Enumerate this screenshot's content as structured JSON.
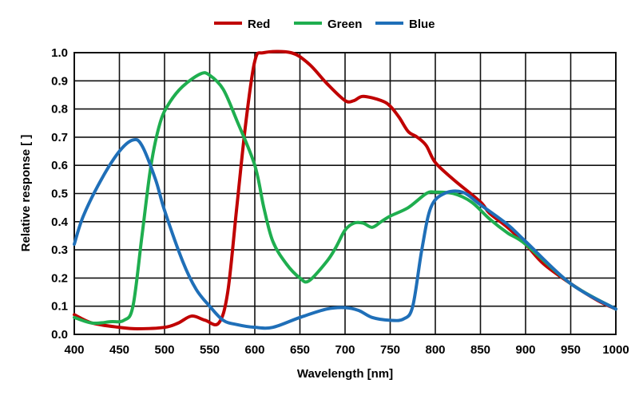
{
  "chart_data": {
    "type": "line",
    "title": "",
    "xlabel": "Wavelength [nm]",
    "ylabel": "Relative response [ ]",
    "xlim": [
      400,
      1000
    ],
    "ylim": [
      0,
      1.0
    ],
    "xticks": [
      400,
      450,
      500,
      550,
      600,
      650,
      700,
      750,
      800,
      850,
      900,
      950,
      1000
    ],
    "yticks": [
      "0.0",
      "0.1",
      "0.2",
      "0.3",
      "0.4",
      "0.5",
      "0.6",
      "0.7",
      "0.8",
      "0.9",
      "1.0"
    ],
    "grid": true,
    "legend_position": "top-center",
    "series": [
      {
        "name": "Red",
        "color": "#c00000",
        "points": [
          [
            400,
            0.07
          ],
          [
            420,
            0.04
          ],
          [
            450,
            0.025
          ],
          [
            470,
            0.02
          ],
          [
            500,
            0.025
          ],
          [
            515,
            0.04
          ],
          [
            530,
            0.065
          ],
          [
            545,
            0.05
          ],
          [
            560,
            0.04
          ],
          [
            570,
            0.15
          ],
          [
            580,
            0.45
          ],
          [
            590,
            0.75
          ],
          [
            600,
            0.97
          ],
          [
            610,
            1.0
          ],
          [
            640,
            1.0
          ],
          [
            660,
            0.96
          ],
          [
            680,
            0.89
          ],
          [
            700,
            0.83
          ],
          [
            710,
            0.83
          ],
          [
            720,
            0.845
          ],
          [
            740,
            0.83
          ],
          [
            750,
            0.81
          ],
          [
            760,
            0.77
          ],
          [
            770,
            0.72
          ],
          [
            780,
            0.7
          ],
          [
            790,
            0.67
          ],
          [
            800,
            0.61
          ],
          [
            820,
            0.55
          ],
          [
            850,
            0.47
          ],
          [
            860,
            0.43
          ],
          [
            880,
            0.38
          ],
          [
            900,
            0.32
          ],
          [
            920,
            0.25
          ],
          [
            950,
            0.18
          ],
          [
            980,
            0.12
          ],
          [
            1000,
            0.09
          ]
        ]
      },
      {
        "name": "Green",
        "color": "#1fae4f",
        "points": [
          [
            400,
            0.06
          ],
          [
            420,
            0.04
          ],
          [
            440,
            0.045
          ],
          [
            455,
            0.05
          ],
          [
            465,
            0.1
          ],
          [
            475,
            0.35
          ],
          [
            485,
            0.6
          ],
          [
            495,
            0.75
          ],
          [
            505,
            0.82
          ],
          [
            520,
            0.88
          ],
          [
            540,
            0.925
          ],
          [
            550,
            0.92
          ],
          [
            565,
            0.87
          ],
          [
            580,
            0.76
          ],
          [
            600,
            0.6
          ],
          [
            610,
            0.45
          ],
          [
            620,
            0.33
          ],
          [
            635,
            0.25
          ],
          [
            650,
            0.2
          ],
          [
            660,
            0.19
          ],
          [
            680,
            0.26
          ],
          [
            690,
            0.31
          ],
          [
            700,
            0.37
          ],
          [
            710,
            0.395
          ],
          [
            720,
            0.395
          ],
          [
            730,
            0.38
          ],
          [
            740,
            0.4
          ],
          [
            750,
            0.42
          ],
          [
            770,
            0.45
          ],
          [
            790,
            0.5
          ],
          [
            800,
            0.505
          ],
          [
            820,
            0.5
          ],
          [
            840,
            0.47
          ],
          [
            860,
            0.41
          ],
          [
            880,
            0.36
          ],
          [
            900,
            0.32
          ],
          [
            950,
            0.18
          ],
          [
            1000,
            0.09
          ]
        ]
      },
      {
        "name": "Blue",
        "color": "#1f6fb8",
        "points": [
          [
            400,
            0.32
          ],
          [
            410,
            0.42
          ],
          [
            430,
            0.55
          ],
          [
            450,
            0.65
          ],
          [
            465,
            0.69
          ],
          [
            475,
            0.67
          ],
          [
            490,
            0.55
          ],
          [
            500,
            0.44
          ],
          [
            520,
            0.26
          ],
          [
            535,
            0.16
          ],
          [
            550,
            0.1
          ],
          [
            565,
            0.05
          ],
          [
            580,
            0.035
          ],
          [
            600,
            0.025
          ],
          [
            620,
            0.025
          ],
          [
            650,
            0.06
          ],
          [
            680,
            0.09
          ],
          [
            700,
            0.095
          ],
          [
            715,
            0.085
          ],
          [
            730,
            0.06
          ],
          [
            750,
            0.05
          ],
          [
            765,
            0.055
          ],
          [
            775,
            0.1
          ],
          [
            785,
            0.3
          ],
          [
            795,
            0.45
          ],
          [
            810,
            0.5
          ],
          [
            830,
            0.505
          ],
          [
            850,
            0.46
          ],
          [
            880,
            0.39
          ],
          [
            900,
            0.33
          ],
          [
            950,
            0.18
          ],
          [
            1000,
            0.09
          ]
        ]
      }
    ]
  }
}
